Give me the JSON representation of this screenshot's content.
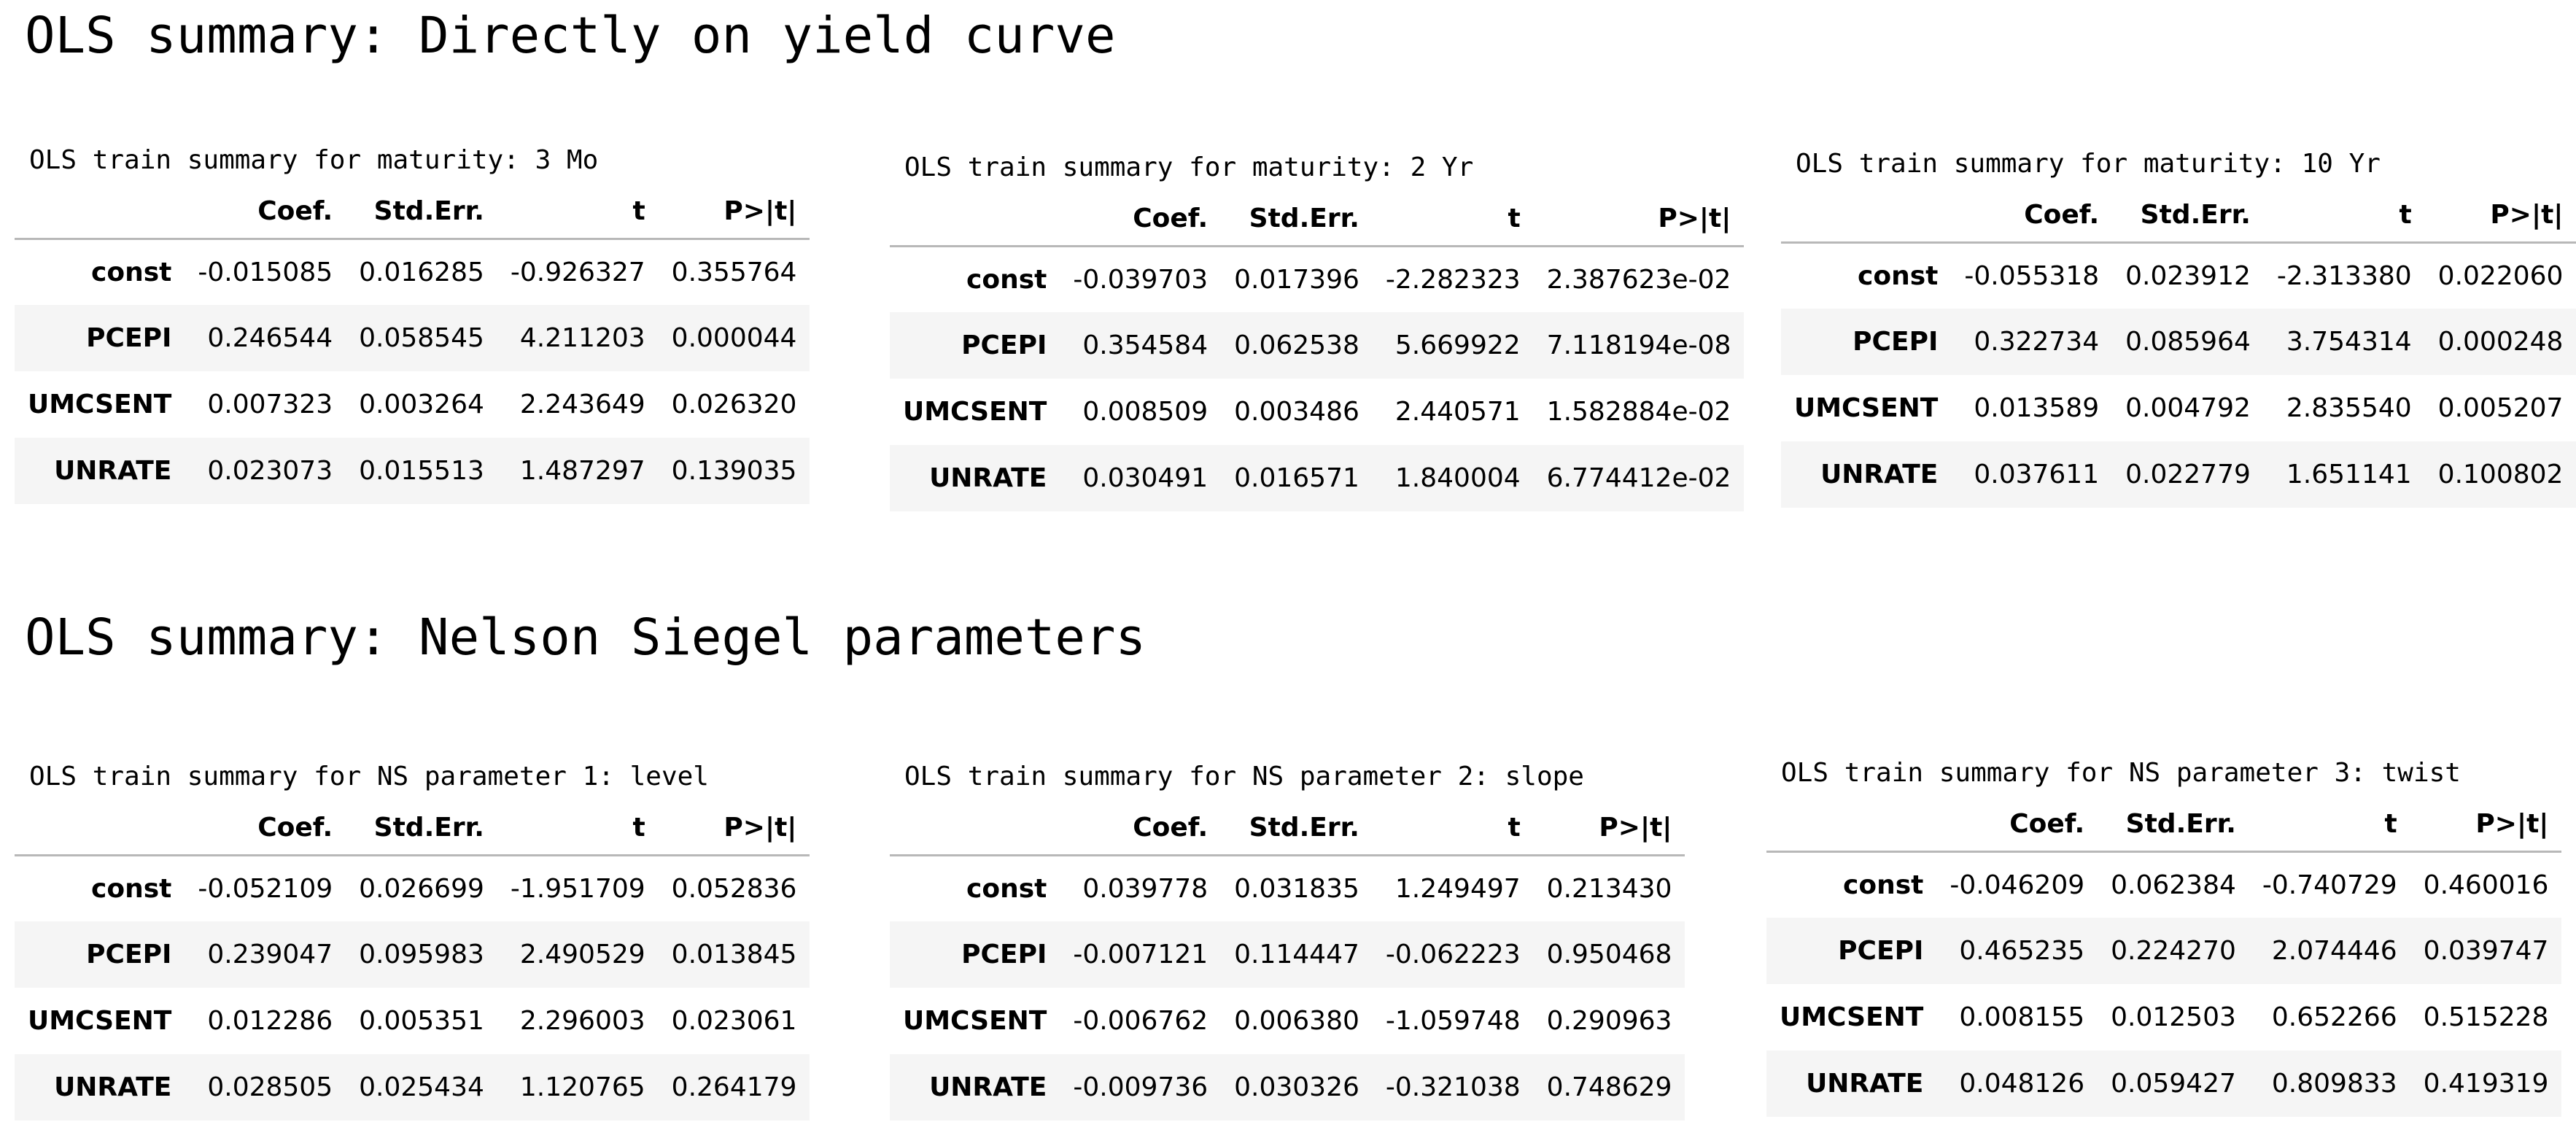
{
  "sections": [
    {
      "title": "OLS summary: Directly on yield curve",
      "tables": [
        {
          "caption": "OLS train summary for maturity: 3 Mo",
          "columns": [
            "",
            "Coef.",
            "Std.Err.",
            "t",
            "P>|t|"
          ],
          "rows": [
            {
              "label": "const",
              "values": [
                "-0.015085",
                "0.016285",
                "-0.926327",
                "0.355764"
              ]
            },
            {
              "label": "PCEPI",
              "values": [
                "0.246544",
                "0.058545",
                "4.211203",
                "0.000044"
              ]
            },
            {
              "label": "UMCSENT",
              "values": [
                "0.007323",
                "0.003264",
                "2.243649",
                "0.026320"
              ]
            },
            {
              "label": "UNRATE",
              "values": [
                "0.023073",
                "0.015513",
                "1.487297",
                "0.139035"
              ]
            }
          ]
        },
        {
          "caption": "OLS train summary for maturity: 2 Yr",
          "columns": [
            "",
            "Coef.",
            "Std.Err.",
            "t",
            "P>|t|"
          ],
          "rows": [
            {
              "label": "const",
              "values": [
                "-0.039703",
                "0.017396",
                "-2.282323",
                "2.387623e-02"
              ]
            },
            {
              "label": "PCEPI",
              "values": [
                "0.354584",
                "0.062538",
                "5.669922",
                "7.118194e-08"
              ]
            },
            {
              "label": "UMCSENT",
              "values": [
                "0.008509",
                "0.003486",
                "2.440571",
                "1.582884e-02"
              ]
            },
            {
              "label": "UNRATE",
              "values": [
                "0.030491",
                "0.016571",
                "1.840004",
                "6.774412e-02"
              ]
            }
          ]
        },
        {
          "caption": "OLS train summary for maturity: 10 Yr",
          "columns": [
            "",
            "Coef.",
            "Std.Err.",
            "t",
            "P>|t|"
          ],
          "rows": [
            {
              "label": "const",
              "values": [
                "-0.055318",
                "0.023912",
                "-2.313380",
                "0.022060"
              ]
            },
            {
              "label": "PCEPI",
              "values": [
                "0.322734",
                "0.085964",
                "3.754314",
                "0.000248"
              ]
            },
            {
              "label": "UMCSENT",
              "values": [
                "0.013589",
                "0.004792",
                "2.835540",
                "0.005207"
              ]
            },
            {
              "label": "UNRATE",
              "values": [
                "0.037611",
                "0.022779",
                "1.651141",
                "0.100802"
              ]
            }
          ]
        }
      ]
    },
    {
      "title": "OLS summary: Nelson Siegel parameters",
      "tables": [
        {
          "caption": "OLS train summary for NS parameter 1: level",
          "columns": [
            "",
            "Coef.",
            "Std.Err.",
            "t",
            "P>|t|"
          ],
          "rows": [
            {
              "label": "const",
              "values": [
                "-0.052109",
                "0.026699",
                "-1.951709",
                "0.052836"
              ]
            },
            {
              "label": "PCEPI",
              "values": [
                "0.239047",
                "0.095983",
                "2.490529",
                "0.013845"
              ]
            },
            {
              "label": "UMCSENT",
              "values": [
                "0.012286",
                "0.005351",
                "2.296003",
                "0.023061"
              ]
            },
            {
              "label": "UNRATE",
              "values": [
                "0.028505",
                "0.025434",
                "1.120765",
                "0.264179"
              ]
            }
          ]
        },
        {
          "caption": "OLS train summary for NS parameter 2: slope",
          "columns": [
            "",
            "Coef.",
            "Std.Err.",
            "t",
            "P>|t|"
          ],
          "rows": [
            {
              "label": "const",
              "values": [
                "0.039778",
                "0.031835",
                "1.249497",
                "0.213430"
              ]
            },
            {
              "label": "PCEPI",
              "values": [
                "-0.007121",
                "0.114447",
                "-0.062223",
                "0.950468"
              ]
            },
            {
              "label": "UMCSENT",
              "values": [
                "-0.006762",
                "0.006380",
                "-1.059748",
                "0.290963"
              ]
            },
            {
              "label": "UNRATE",
              "values": [
                "-0.009736",
                "0.030326",
                "-0.321038",
                "0.748629"
              ]
            }
          ]
        },
        {
          "caption": "OLS train summary for NS parameter 3: twist",
          "columns": [
            "",
            "Coef.",
            "Std.Err.",
            "t",
            "P>|t|"
          ],
          "rows": [
            {
              "label": "const",
              "values": [
                "-0.046209",
                "0.062384",
                "-0.740729",
                "0.460016"
              ]
            },
            {
              "label": "PCEPI",
              "values": [
                "0.465235",
                "0.224270",
                "2.074446",
                "0.039747"
              ]
            },
            {
              "label": "UMCSENT",
              "values": [
                "0.008155",
                "0.012503",
                "0.652266",
                "0.515228"
              ]
            },
            {
              "label": "UNRATE",
              "values": [
                "0.048126",
                "0.059427",
                "0.809833",
                "0.419319"
              ]
            }
          ]
        }
      ]
    }
  ]
}
